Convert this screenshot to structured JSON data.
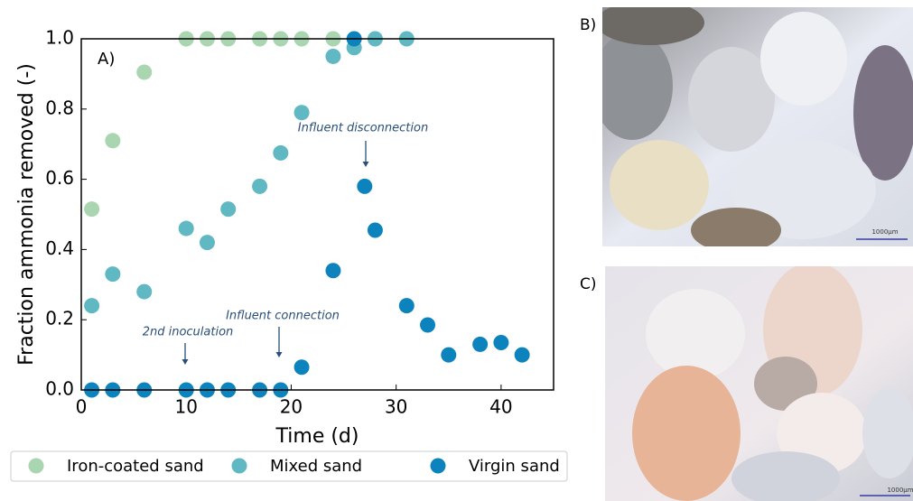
{
  "chart_data": {
    "type": "scatter",
    "panel_label": "A)",
    "xlabel": "Time (d)",
    "ylabel": "Fraction ammonia removed (-)",
    "xlim": [
      0,
      45
    ],
    "ylim": [
      0,
      1
    ],
    "xticks": [
      0,
      10,
      20,
      30,
      40
    ],
    "yticks": [
      {
        "value": 0,
        "label": "0.0"
      },
      0.2,
      0.4,
      0.6,
      0.8,
      {
        "value": 1,
        "label": "1.0"
      }
    ],
    "legend": "bottom",
    "series": [
      {
        "name": "Iron-coated sand",
        "color": "#a9d6b1",
        "x": [
          1,
          3,
          6,
          10,
          12,
          14,
          17,
          19,
          21,
          24
        ],
        "values": [
          0.515,
          0.71,
          0.905,
          1,
          1,
          1,
          1,
          1,
          1,
          1
        ]
      },
      {
        "name": "Mixed sand",
        "color": "#5fb8c2",
        "x": [
          1,
          3,
          6,
          10,
          12,
          14,
          17,
          19,
          21,
          24,
          26,
          28,
          31
        ],
        "values": [
          0.24,
          0.33,
          0.28,
          0.46,
          0.42,
          0.515,
          0.58,
          0.675,
          0.79,
          0.95,
          0.975,
          1,
          1
        ]
      },
      {
        "name": "Virgin sand",
        "color": "#0d83bd",
        "x": [
          1,
          3,
          6,
          10,
          12,
          14,
          17,
          19,
          21,
          24,
          26,
          27,
          28,
          31,
          33,
          35,
          38,
          40,
          42
        ],
        "values": [
          0,
          0,
          0,
          0,
          0,
          0,
          0,
          0,
          0.065,
          0.34,
          1,
          0.58,
          0.455,
          0.24,
          0.185,
          0.1,
          0.13,
          0.135,
          0.1
        ]
      }
    ],
    "annotations": [
      {
        "text": "2nd inoculation"
      },
      {
        "text": "Influent connection"
      },
      {
        "text": "Influent disconnection"
      }
    ]
  },
  "images": [
    {
      "label": "B)",
      "scale": "1000µm"
    },
    {
      "label": "C)",
      "scale": "1000µm"
    }
  ]
}
